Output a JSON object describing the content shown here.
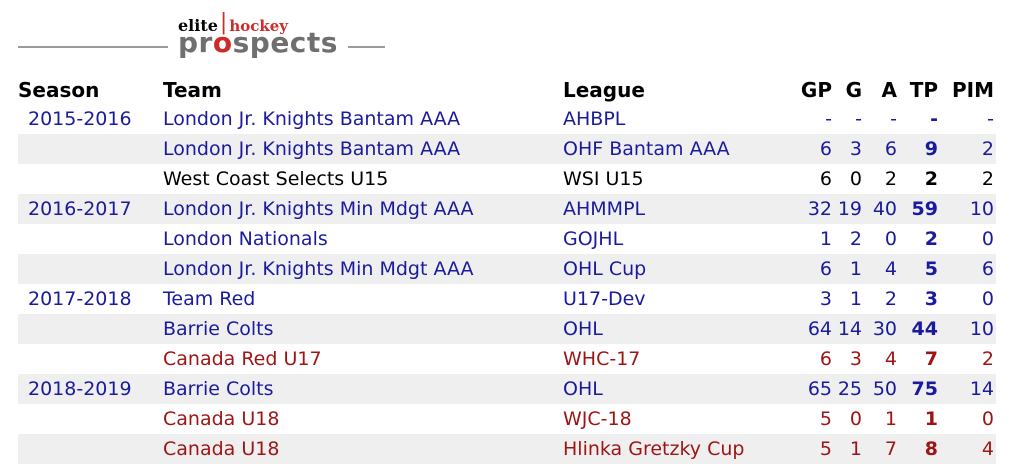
{
  "logo": {
    "elite": "elite",
    "separator": "|",
    "hockey": "hockey",
    "prospects_pre": "pr",
    "prospects_o": "o",
    "prospects_rest": "spects"
  },
  "colors": {
    "link_blue": "#1a1a9e",
    "national_red": "#9e1414",
    "text_black": "#000000",
    "stripe_gray": "#efefef",
    "logo_red": "#cf2a2a",
    "logo_gray": "#6f6f6f",
    "divider_gray": "#9b9b9b"
  },
  "table": {
    "headers": [
      "Season",
      "Team",
      "League",
      "GP",
      "G",
      "A",
      "TP",
      "PIM"
    ],
    "rows": [
      {
        "season": "2015-2016",
        "team": "London Jr. Knights Bantam AAA",
        "league": "AHBPL",
        "gp": "-",
        "g": "-",
        "a": "-",
        "tp": "-",
        "pim": "-",
        "variant": "link"
      },
      {
        "season": "",
        "team": "London Jr. Knights Bantam AAA",
        "league": "OHF Bantam AAA",
        "gp": "6",
        "g": "3",
        "a": "6",
        "tp": "9",
        "pim": "2",
        "variant": "link"
      },
      {
        "season": "",
        "team": "West Coast Selects U15",
        "league": "WSI U15",
        "gp": "6",
        "g": "0",
        "a": "2",
        "tp": "2",
        "pim": "2",
        "variant": "plain"
      },
      {
        "season": "2016-2017",
        "team": "London Jr. Knights Min Mdgt AAA",
        "league": "AHMMPL",
        "gp": "32",
        "g": "19",
        "a": "40",
        "tp": "59",
        "pim": "10",
        "variant": "link"
      },
      {
        "season": "",
        "team": "London Nationals",
        "league": "GOJHL",
        "gp": "1",
        "g": "2",
        "a": "0",
        "tp": "2",
        "pim": "0",
        "variant": "link"
      },
      {
        "season": "",
        "team": "London Jr. Knights Min Mdgt AAA",
        "league": "OHL Cup",
        "gp": "6",
        "g": "1",
        "a": "4",
        "tp": "5",
        "pim": "6",
        "variant": "link"
      },
      {
        "season": "2017-2018",
        "team": "Team Red",
        "league": "U17-Dev",
        "gp": "3",
        "g": "1",
        "a": "2",
        "tp": "3",
        "pim": "0",
        "variant": "link"
      },
      {
        "season": "",
        "team": "Barrie Colts",
        "league": "OHL",
        "gp": "64",
        "g": "14",
        "a": "30",
        "tp": "44",
        "pim": "10",
        "variant": "link"
      },
      {
        "season": "",
        "team": "Canada Red U17",
        "league": "WHC-17",
        "gp": "6",
        "g": "3",
        "a": "4",
        "tp": "7",
        "pim": "2",
        "variant": "national"
      },
      {
        "season": "2018-2019",
        "team": "Barrie Colts",
        "league": "OHL",
        "gp": "65",
        "g": "25",
        "a": "50",
        "tp": "75",
        "pim": "14",
        "variant": "link"
      },
      {
        "season": "",
        "team": "Canada U18",
        "league": "WJC-18",
        "gp": "5",
        "g": "0",
        "a": "1",
        "tp": "1",
        "pim": "0",
        "variant": "national"
      },
      {
        "season": "",
        "team": "Canada U18",
        "league": "Hlinka Gretzky Cup",
        "gp": "5",
        "g": "1",
        "a": "7",
        "tp": "8",
        "pim": "4",
        "variant": "national"
      }
    ]
  }
}
